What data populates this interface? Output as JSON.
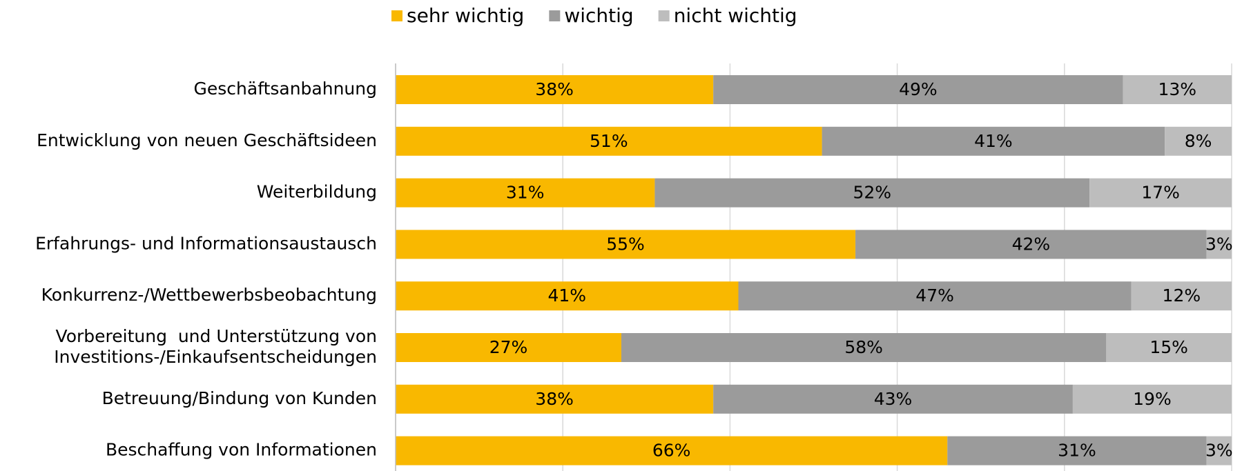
{
  "chart_data": {
    "type": "stacked_barh",
    "categories": [
      "Geschäftsanbahnung",
      "Entwicklung von neuen Geschäftsideen",
      "Weiterbildung",
      "Erfahrungs- und Informationsaustausch",
      "Konkurrenz-/Wettbewerbsbeobachtung",
      "Vorbereitung  und Unterstützung von\nInvestitions-/Einkaufsentscheidungen",
      "Betreuung/Bindung von Kunden",
      "Beschaffung von Informationen"
    ],
    "series": [
      {
        "name": "sehr wichtig",
        "color": "#F9B800",
        "values": [
          38,
          51,
          31,
          55,
          41,
          27,
          38,
          66
        ],
        "value_labels": [
          "38%",
          "51%",
          "31%",
          "55%",
          "41%",
          "27%",
          "38%",
          "66%"
        ]
      },
      {
        "name": "wichtig",
        "color": "#9B9B9B",
        "values": [
          49,
          41,
          52,
          42,
          47,
          58,
          43,
          31
        ],
        "value_labels": [
          "49%",
          "41%",
          "52%",
          "42%",
          "47%",
          "58%",
          "43%",
          "31%"
        ]
      },
      {
        "name": "nicht wichtig",
        "color": "#BDBDBD",
        "values": [
          13,
          8,
          17,
          3,
          12,
          15,
          19,
          3
        ],
        "value_labels": [
          "13%",
          "8%",
          "17%",
          "3%",
          "12%",
          "15%",
          "19%",
          "3%"
        ]
      }
    ],
    "xlim": [
      0,
      100
    ],
    "xticks": [
      0,
      20,
      40,
      60,
      80,
      100
    ],
    "grid": true,
    "legend": "top"
  }
}
